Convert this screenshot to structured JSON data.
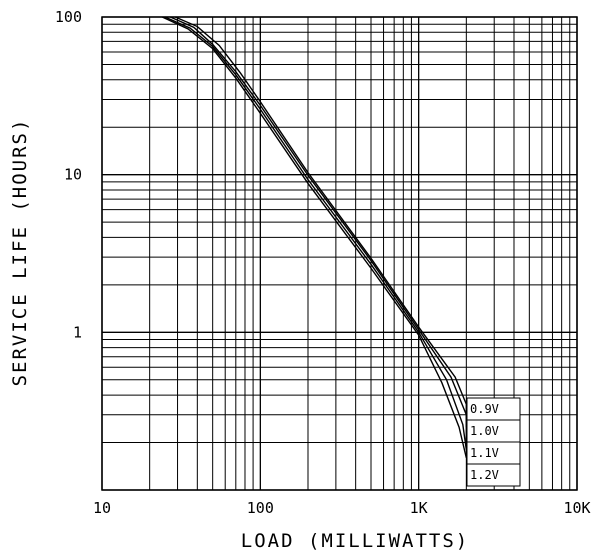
{
  "chart_data": {
    "type": "line",
    "xscale": "log",
    "yscale": "log",
    "xlim": [
      10,
      10000
    ],
    "ylim": [
      0.1,
      100
    ],
    "xlabel": "LOAD (MILLIWATTS)",
    "ylabel": "SERVICE LIFE (HOURS)",
    "xticks": [
      {
        "value": 10,
        "label": "10"
      },
      {
        "value": 100,
        "label": "100"
      },
      {
        "value": 1000,
        "label": "1K"
      },
      {
        "value": 10000,
        "label": "10K"
      }
    ],
    "yticks": [
      {
        "value": 100,
        "label": "100"
      },
      {
        "value": 10,
        "label": "10"
      },
      {
        "value": 1,
        "label": "1"
      }
    ],
    "grid": true,
    "series": [
      {
        "name": "0.9V",
        "points": [
          [
            24,
            100
          ],
          [
            35,
            84
          ],
          [
            50,
            63
          ],
          [
            70,
            41
          ],
          [
            100,
            24.5
          ],
          [
            200,
            8.8
          ],
          [
            500,
            2.55
          ],
          [
            1000,
            0.96
          ],
          [
            1400,
            0.48
          ],
          [
            1800,
            0.25
          ],
          [
            2000,
            0.16
          ]
        ]
      },
      {
        "name": "1.0V",
        "points": [
          [
            25,
            100
          ],
          [
            36,
            85
          ],
          [
            50,
            65
          ],
          [
            70,
            43
          ],
          [
            100,
            26
          ],
          [
            200,
            9.3
          ],
          [
            500,
            2.7
          ],
          [
            1000,
            1.0
          ],
          [
            1500,
            0.5
          ],
          [
            1900,
            0.26
          ],
          [
            2000,
            0.18
          ]
        ]
      },
      {
        "name": "1.1V",
        "points": [
          [
            27,
            100
          ],
          [
            38,
            86
          ],
          [
            50,
            67
          ],
          [
            70,
            45
          ],
          [
            100,
            27.5
          ],
          [
            200,
            9.9
          ],
          [
            500,
            2.85
          ],
          [
            1000,
            1.04
          ],
          [
            1600,
            0.52
          ],
          [
            2000,
            0.3
          ],
          [
            2000,
            0.2
          ]
        ]
      },
      {
        "name": "1.2V",
        "points": [
          [
            29,
            100
          ],
          [
            40,
            87
          ],
          [
            55,
            66
          ],
          [
            75,
            44
          ],
          [
            100,
            29
          ],
          [
            200,
            10.3
          ],
          [
            500,
            2.95
          ],
          [
            1000,
            1.08
          ],
          [
            1700,
            0.52
          ],
          [
            2000,
            0.35
          ],
          [
            2000,
            0.25
          ]
        ]
      }
    ]
  }
}
